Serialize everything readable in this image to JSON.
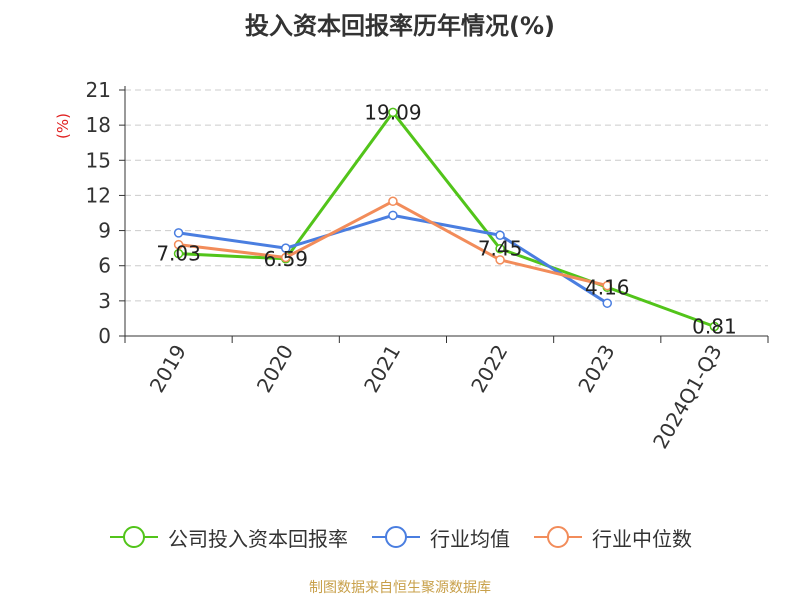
{
  "title": "投入资本回报率历年情况(%)",
  "source": "制图数据来自恒生聚源数据库",
  "chart_data": {
    "type": "line",
    "categories": [
      "2019",
      "2020",
      "2021",
      "2022",
      "2023",
      "2024Q1-Q3"
    ],
    "ylabel": "(%)",
    "ylim": [
      0,
      21
    ],
    "yticks": [
      0,
      3,
      6,
      9,
      12,
      15,
      18,
      21
    ],
    "grid": true,
    "legend_position": "bottom",
    "series": [
      {
        "name": "公司投入资本回报率",
        "color": "#52c41a",
        "values": [
          7.03,
          6.59,
          19.09,
          7.45,
          4.16,
          0.81
        ],
        "labels": [
          "7.03",
          "6.59",
          "19.09",
          "7.45",
          "4.16",
          "0.81"
        ]
      },
      {
        "name": "行业均值",
        "color": "#4a7ee0",
        "values": [
          8.8,
          7.5,
          10.3,
          8.6,
          2.8,
          null
        ]
      },
      {
        "name": "行业中位数",
        "color": "#f28c5a",
        "values": [
          7.8,
          6.7,
          11.5,
          6.5,
          4.3,
          null
        ]
      }
    ]
  }
}
